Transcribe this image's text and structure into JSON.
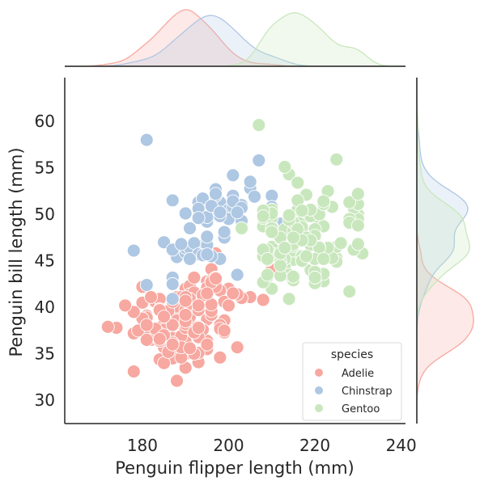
{
  "chart_data": {
    "type": "scatter",
    "xlabel": "Penguin flipper length (mm)",
    "ylabel": "Penguin bill length (mm)",
    "xlim": [
      162,
      241
    ],
    "ylim": [
      27.5,
      64.7
    ],
    "x_ticks": [
      180,
      200,
      220,
      240
    ],
    "y_ticks": [
      30,
      35,
      40,
      45,
      50,
      55,
      60
    ],
    "grid": false,
    "legend": {
      "title": "species",
      "placement": "lower-right",
      "entries": [
        "Adelie",
        "Chinstrap",
        "Gentoo"
      ]
    },
    "marginals": {
      "top": "kde of flipper length by species",
      "right": "kde of bill length by species"
    },
    "series": [
      {
        "name": "Adelie",
        "color": "#f7a8a0",
        "x": [
          181,
          186,
          195,
          193,
          190,
          181,
          195,
          193,
          190,
          186,
          180,
          182,
          191,
          198,
          185,
          195,
          197,
          184,
          194,
          174,
          180,
          189,
          185,
          180,
          187,
          183,
          187,
          172,
          180,
          178,
          178,
          188,
          184,
          195,
          196,
          190,
          180,
          181,
          184,
          182,
          195,
          186,
          196,
          185,
          190,
          182,
          179,
          190,
          191,
          186,
          188,
          190,
          200,
          187,
          191,
          186,
          193,
          181,
          194,
          185,
          195,
          185,
          192,
          184,
          192,
          195,
          188,
          190,
          198,
          190,
          190,
          196,
          197,
          190,
          195,
          191,
          184,
          187,
          195,
          189,
          196,
          187,
          193,
          191,
          194,
          190,
          189,
          189,
          190,
          202,
          205,
          185,
          186,
          187,
          208,
          190,
          196,
          178,
          192,
          192,
          203,
          183,
          190,
          193,
          184,
          199,
          190,
          181,
          197,
          198,
          191,
          193,
          197,
          191,
          196,
          188,
          199,
          189,
          189,
          187,
          198,
          176,
          202,
          186,
          199,
          191,
          195,
          191,
          210,
          190,
          197,
          193,
          199,
          187,
          190,
          191,
          200,
          185,
          193,
          193,
          187,
          188,
          190,
          192,
          185,
          190,
          184,
          195,
          193,
          187,
          201
        ],
        "y": [
          39.1,
          39.5,
          40.3,
          36.7,
          39.3,
          38.9,
          39.2,
          34.1,
          42.0,
          37.8,
          37.8,
          41.1,
          38.6,
          34.6,
          36.6,
          38.7,
          42.5,
          34.4,
          46.0,
          37.8,
          37.7,
          35.9,
          38.2,
          38.8,
          35.3,
          40.6,
          40.5,
          37.9,
          40.5,
          39.5,
          37.2,
          39.5,
          40.9,
          36.4,
          39.2,
          38.8,
          42.2,
          37.6,
          39.8,
          36.5,
          40.8,
          36.0,
          44.1,
          37.0,
          39.6,
          41.1,
          37.5,
          36.0,
          42.3,
          39.6,
          40.1,
          35.0,
          42.0,
          34.5,
          41.4,
          39.0,
          40.6,
          36.5,
          37.6,
          35.7,
          41.3,
          37.6,
          41.1,
          36.4,
          41.6,
          35.5,
          41.1,
          35.9,
          41.8,
          33.5,
          39.7,
          39.6,
          45.8,
          35.5,
          42.8,
          40.9,
          37.2,
          36.2,
          42.1,
          34.6,
          42.9,
          36.7,
          35.1,
          37.3,
          41.3,
          36.3,
          36.9,
          38.3,
          38.9,
          35.7,
          41.1,
          34.0,
          39.6,
          36.2,
          40.8,
          38.1,
          40.3,
          33.1,
          43.2,
          35.0,
          41.0,
          37.7,
          37.8,
          37.9,
          39.7,
          38.6,
          38.2,
          38.1,
          43.2,
          38.1,
          45.6,
          39.7,
          42.2,
          39.6,
          42.7,
          38.6,
          37.3,
          35.7,
          41.1,
          36.2,
          37.7,
          40.2,
          41.4,
          35.2,
          40.6,
          38.8,
          41.5,
          39.0,
          44.1,
          38.5,
          43.1,
          36.8,
          37.5,
          38.1,
          41.1,
          35.6,
          40.2,
          37.0,
          39.7,
          40.2,
          40.6,
          32.1,
          40.7,
          37.3,
          39.0,
          39.2,
          36.6,
          36.0,
          37.8,
          36.0,
          41.5
        ]
      },
      {
        "name": "Chinstrap",
        "color": "#aec7e3",
        "x": [
          192,
          196,
          193,
          188,
          197,
          198,
          178,
          197,
          195,
          198,
          193,
          194,
          185,
          201,
          190,
          201,
          197,
          181,
          190,
          195,
          181,
          191,
          187,
          193,
          195,
          197,
          200,
          200,
          191,
          205,
          187,
          201,
          187,
          203,
          195,
          199,
          195,
          210,
          192,
          205,
          210,
          187,
          196,
          196,
          196,
          201,
          190,
          212,
          187,
          198,
          199,
          201,
          193,
          203,
          187,
          197,
          191,
          203,
          202,
          194,
          206,
          189,
          195,
          207,
          202,
          193,
          210,
          198
        ],
        "y": [
          46.5,
          50.0,
          51.3,
          45.4,
          52.7,
          45.2,
          46.1,
          51.3,
          46.0,
          51.3,
          46.6,
          51.7,
          47.0,
          52.0,
          45.9,
          50.5,
          50.3,
          58.0,
          46.4,
          49.2,
          42.4,
          48.5,
          43.2,
          50.6,
          46.7,
          52.0,
          50.5,
          49.5,
          46.4,
          52.8,
          40.9,
          54.2,
          42.5,
          51.0,
          49.7,
          47.5,
          47.6,
          52.0,
          46.9,
          53.5,
          49.0,
          46.2,
          50.9,
          45.5,
          50.9,
          50.8,
          50.1,
          49.0,
          51.5,
          49.8,
          48.1,
          51.4,
          45.7,
          50.7,
          42.5,
          52.2,
          45.2,
          49.3,
          50.2,
          45.6,
          51.9,
          46.8,
          45.7,
          55.8,
          43.5,
          49.6,
          50.8,
          50.2
        ]
      },
      {
        "name": "Gentoo",
        "color": "#c9e7bd",
        "x": [
          211,
          230,
          210,
          218,
          215,
          210,
          211,
          219,
          209,
          215,
          214,
          216,
          214,
          213,
          210,
          217,
          210,
          221,
          209,
          222,
          218,
          215,
          213,
          215,
          215,
          215,
          216,
          215,
          210,
          220,
          222,
          209,
          207,
          230,
          220,
          220,
          213,
          219,
          208,
          208,
          208,
          225,
          210,
          216,
          222,
          217,
          210,
          225,
          213,
          215,
          210,
          220,
          210,
          225,
          217,
          220,
          208,
          220,
          208,
          224,
          208,
          221,
          214,
          231,
          219,
          230,
          214,
          229,
          220,
          223,
          216,
          221,
          221,
          217,
          216,
          230,
          209,
          220,
          215,
          223,
          212,
          221,
          212,
          224,
          212,
          228,
          218,
          218,
          212,
          230,
          218,
          228,
          212,
          224,
          214,
          226,
          216,
          222,
          203,
          225,
          219,
          228,
          215,
          228,
          216,
          215,
          210,
          219,
          208,
          209,
          216,
          229,
          213,
          230,
          217,
          230,
          217,
          222,
          214,
          215,
          222,
          212,
          213
        ],
        "y": [
          46.1,
          50.0,
          48.7,
          50.0,
          47.6,
          46.5,
          45.4,
          46.7,
          43.3,
          46.8,
          40.9,
          49.0,
          45.5,
          48.4,
          45.8,
          49.3,
          42.0,
          49.2,
          46.2,
          48.7,
          50.2,
          45.1,
          46.5,
          46.3,
          42.9,
          46.1,
          47.8,
          48.2,
          50.0,
          47.3,
          42.8,
          45.1,
          59.6,
          49.1,
          48.4,
          42.6,
          44.4,
          44.0,
          48.7,
          42.7,
          49.6,
          45.3,
          49.6,
          50.5,
          43.6,
          45.5,
          50.5,
          44.9,
          45.2,
          46.6,
          48.5,
          45.1,
          50.1,
          46.5,
          45.0,
          43.8,
          45.5,
          43.2,
          50.4,
          45.3,
          46.2,
          45.7,
          54.3,
          45.8,
          49.8,
          49.5,
          43.5,
          50.7,
          47.7,
          46.4,
          48.2,
          46.5,
          46.4,
          48.6,
          47.5,
          51.1,
          45.2,
          45.2,
          49.1,
          52.5,
          47.4,
          50.0,
          44.9,
          50.8,
          43.4,
          51.3,
          47.5,
          52.1,
          47.5,
          52.2,
          45.5,
          49.5,
          44.5,
          50.8,
          49.4,
          46.9,
          48.4,
          51.1,
          48.5,
          55.9,
          47.2,
          49.1,
          46.8,
          41.7,
          53.4,
          43.3,
          48.1,
          50.5,
          49.8,
          43.5,
          51.5,
          46.2,
          55.1,
          48.8,
          47.2,
          46.8,
          50.4,
          45.2,
          49.9,
          47.5,
          51.4,
          45.8,
          46.4
        ]
      }
    ]
  }
}
